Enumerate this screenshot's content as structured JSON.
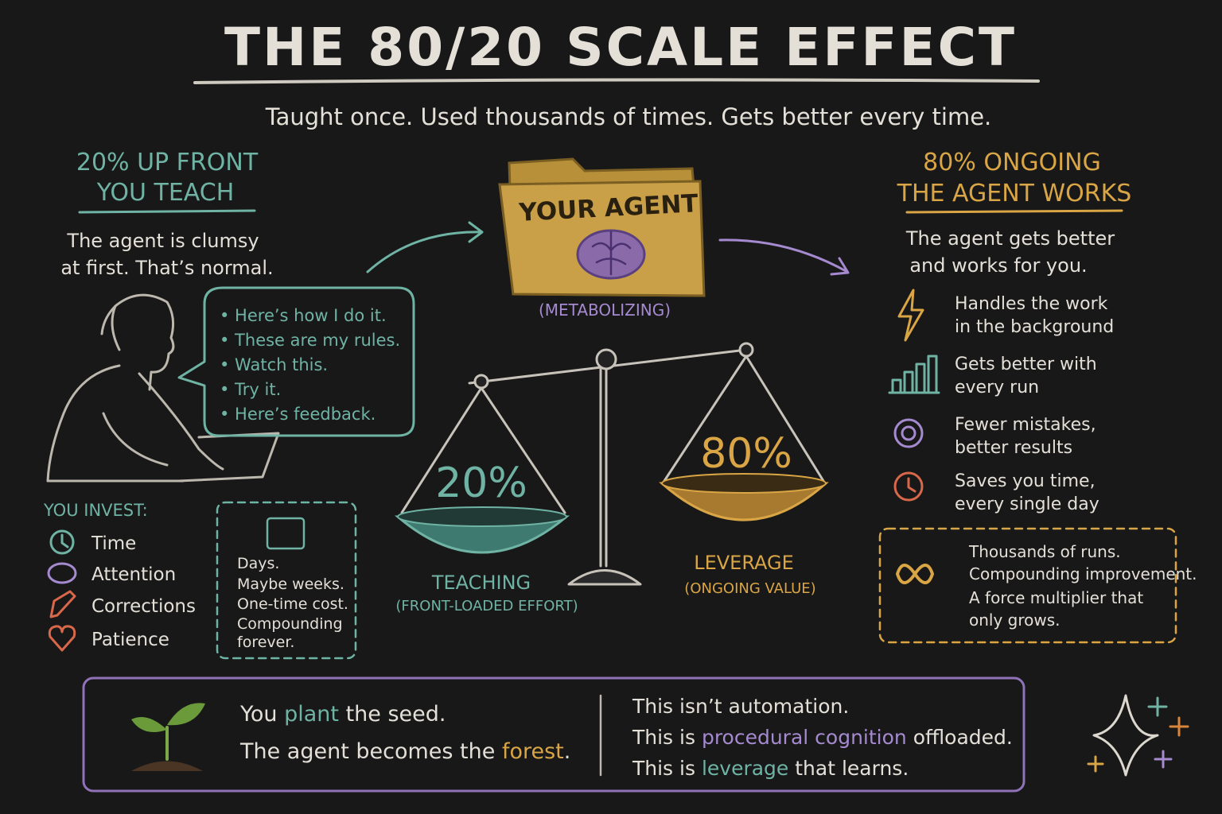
{
  "header": {
    "title": "THE 80/20 SCALE EFFECT",
    "subtitle": "Taught once. Used thousands of times. Gets better every time."
  },
  "left": {
    "heading": [
      "20% UP FRONT",
      "YOU TEACH"
    ],
    "text": [
      "The agent is clumsy",
      "at first. That’s normal."
    ],
    "bubble": [
      "• Here’s how I do it.",
      "• These are my rules.",
      "• Watch this.",
      "• Try it.",
      "• Here’s feedback."
    ],
    "invest_title": "YOU INVEST:",
    "invest": [
      "Time",
      "Attention",
      "Corrections",
      "Patience"
    ],
    "note": [
      "Days.",
      "Maybe weeks.",
      "One-time cost.",
      "Compounding",
      "forever."
    ]
  },
  "center": {
    "folder": "YOUR AGENT",
    "folder_caption": "(METABOLIZING)",
    "left_pan": "20%",
    "right_pan": "80%",
    "left_label": "TEACHING",
    "left_sub": "(FRONT-LOADED EFFORT)",
    "right_label": "LEVERAGE",
    "right_sub": "(ONGOING VALUE)"
  },
  "right": {
    "heading": [
      "80% ONGOING",
      "THE AGENT WORKS"
    ],
    "text": [
      "The agent gets better",
      "and works for you."
    ],
    "benefits": [
      [
        "Handles the work",
        "in the background"
      ],
      [
        "Gets better with",
        "every run"
      ],
      [
        "Fewer mistakes,",
        "better results"
      ],
      [
        "Saves you time,",
        "every single day"
      ]
    ],
    "note": [
      "Thousands of runs.",
      "Compounding improvement.",
      "A force multiplier that",
      "only grows."
    ]
  },
  "footer": {
    "left": [
      [
        "You ",
        "plant",
        " the seed."
      ],
      [
        "The agent becomes the ",
        "forest",
        "."
      ]
    ],
    "right": [
      [
        "This isn’t automation."
      ],
      [
        "This is ",
        "procedural cognition",
        " offloaded."
      ],
      [
        "This is ",
        "leverage",
        " that learns."
      ]
    ]
  }
}
